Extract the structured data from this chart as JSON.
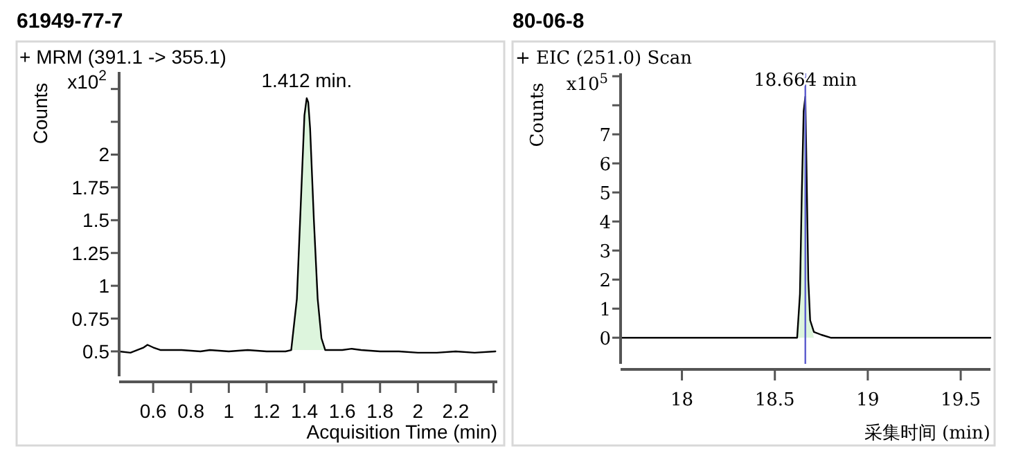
{
  "chart_data": [
    {
      "type": "line",
      "title": "61949-77-7",
      "subtitle": "+ MRM (391.1 -> 355.1)",
      "xlabel": "Acquisition Time (min)",
      "ylabel": "Counts",
      "annotations": [
        "x10$^{2}$",
        {
          "text": "1.412 min.",
          "x": 1.412,
          "y": 2.43
        }
      ],
      "series": [
        {
          "type": "area",
          "color": "#ddf5dd",
          "x": [
            1.33,
            1.36,
            1.38,
            1.4,
            1.412,
            1.42,
            1.43,
            1.45,
            1.47,
            1.49,
            1.51
          ],
          "values": [
            0.51,
            0.9,
            1.6,
            2.3,
            2.43,
            2.4,
            2.2,
            1.5,
            0.9,
            0.6,
            0.51
          ]
        },
        {
          "type": "line",
          "color": "#000000",
          "x": [
            0.42,
            0.48,
            0.55,
            0.57,
            0.6,
            0.64,
            0.75,
            0.85,
            0.9,
            1.0,
            1.1,
            1.2,
            1.3,
            1.33,
            1.36,
            1.38,
            1.4,
            1.412,
            1.42,
            1.43,
            1.45,
            1.47,
            1.49,
            1.51,
            1.6,
            1.65,
            1.7,
            1.8,
            1.9,
            2.0,
            2.1,
            2.2,
            2.3,
            2.41
          ],
          "values": [
            0.5,
            0.49,
            0.53,
            0.55,
            0.53,
            0.51,
            0.51,
            0.5,
            0.51,
            0.5,
            0.51,
            0.5,
            0.5,
            0.51,
            0.9,
            1.6,
            2.3,
            2.43,
            2.4,
            2.2,
            1.5,
            0.9,
            0.6,
            0.51,
            0.51,
            0.52,
            0.51,
            0.5,
            0.5,
            0.49,
            0.49,
            0.5,
            0.49,
            0.5
          ]
        }
      ],
      "xlim": [
        0.42,
        2.42
      ],
      "ylim": [
        0.31,
        2.63
      ],
      "xticks": [
        0.6,
        0.8,
        1,
        1.2,
        1.4,
        1.6,
        1.8,
        2,
        2.2,
        {
          "value": 2.4,
          "label": null
        }
      ],
      "yticks": [
        0.5,
        0.75,
        1,
        1.25,
        1.5,
        1.75,
        2,
        {
          "value": 2.25,
          "label": null
        },
        {
          "value": 2.5,
          "label": null
        }
      ],
      "grid": false,
      "marker": "none"
    },
    {
      "type": "line",
      "title": "80-06-8",
      "subtitle": "+ EIC (251.0) Scan",
      "xlabel": "采集时间 (min)",
      "ylabel": "Counts",
      "annotations": [
        "x10$^{5}$",
        {
          "text": "18.664 min",
          "x": 18.664,
          "y": 8.3
        }
      ],
      "series": [
        {
          "type": "area",
          "color": "#ddf5dd",
          "x": [
            18.62,
            18.635,
            18.645,
            18.655,
            18.664,
            18.67,
            18.68,
            18.69,
            18.71
          ],
          "values": [
            0,
            1.5,
            5,
            7.8,
            8.3,
            6,
            2,
            0.6,
            0
          ]
        },
        {
          "type": "line",
          "color": "#000000",
          "x": [
            17.67,
            17.9,
            18.2,
            18.5,
            18.6,
            18.62,
            18.635,
            18.645,
            18.655,
            18.664,
            18.67,
            18.68,
            18.69,
            18.71,
            18.75,
            18.8,
            19.0,
            19.3,
            19.66
          ],
          "values": [
            0,
            0,
            0,
            0,
            0,
            0,
            1.5,
            5,
            7.8,
            8.3,
            6,
            2,
            0.6,
            0.2,
            0.1,
            0,
            0,
            0,
            0
          ]
        }
      ],
      "ref_lines": [
        {
          "axis": "x",
          "value": 18.664,
          "color": "#5a5acd"
        }
      ],
      "xlim": [
        17.67,
        19.66
      ],
      "ylim": [
        -0.9,
        9.1
      ],
      "xticks": [
        18,
        18.5,
        19,
        19.5
      ],
      "yticks": [
        0,
        1,
        2,
        3,
        4,
        5,
        6,
        7,
        {
          "value": 8,
          "label": null
        },
        {
          "value": 9,
          "label": null
        }
      ],
      "grid": false,
      "marker": "none"
    }
  ]
}
